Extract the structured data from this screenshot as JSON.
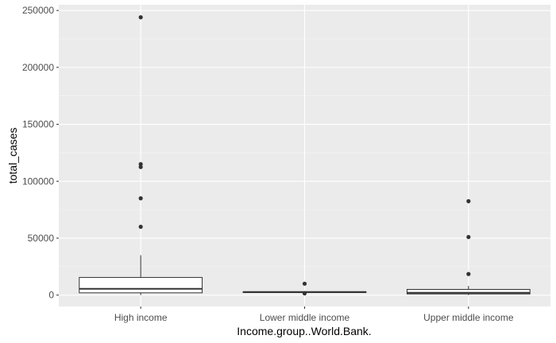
{
  "chart_data": {
    "type": "boxplot",
    "xlabel": "Income.group..World.Bank.",
    "ylabel": "total_cases",
    "ylim": [
      -10000,
      255000
    ],
    "yticks": [
      {
        "value": 0,
        "label": "0"
      },
      {
        "value": 50000,
        "label": "50000"
      },
      {
        "value": 100000,
        "label": "100000"
      },
      {
        "value": 150000,
        "label": "150000"
      },
      {
        "value": 200000,
        "label": "200000"
      },
      {
        "value": 250000,
        "label": "250000"
      }
    ],
    "categories": [
      "High income",
      "Lower middle income",
      "Upper middle income"
    ],
    "boxes": [
      {
        "category": "High income",
        "whisker_low": 0,
        "q1": 2000,
        "median": 5500,
        "q3": 15500,
        "whisker_high": 35000,
        "outliers": [
          60000,
          85000,
          112500,
          115000,
          244000
        ]
      },
      {
        "category": "Lower middle income",
        "whisker_low": 1500,
        "q1": 2200,
        "median": 2600,
        "q3": 3000,
        "whisker_high": 3500,
        "outliers": [
          10000,
          1500
        ]
      },
      {
        "category": "Upper middle income",
        "whisker_low": 0,
        "q1": 1000,
        "median": 2000,
        "q3": 5000,
        "whisker_high": 8000,
        "outliers": [
          18500,
          51000,
          82500
        ]
      }
    ],
    "colors": {
      "panel": "#ebebeb",
      "grid_major": "#ffffff",
      "grid_minor": "#f5f5f5",
      "box_line": "#333333",
      "box_fill": "#ffffff",
      "point": "#333333"
    },
    "grid": true,
    "legend": "none"
  }
}
